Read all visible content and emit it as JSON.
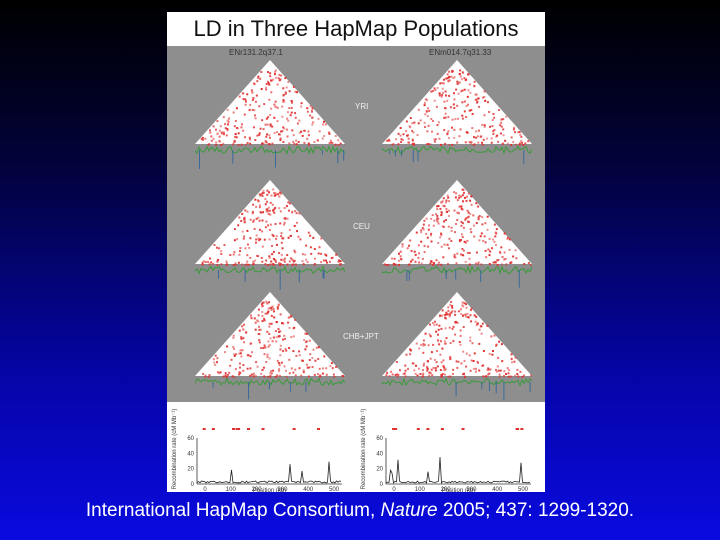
{
  "slide": {
    "figure_title": "LD in Three HapMap Populations",
    "left_region_label": "ENr131.2q37.1",
    "right_region_label": "ENm014.7q31.33",
    "populations": [
      "YRI",
      "CEU",
      "CHB+JPT"
    ],
    "recombination_panel": {
      "y_axis_label": "Recombination rate (cM Mb⁻¹)",
      "y_ticks": [
        "0",
        "20",
        "40",
        "60"
      ],
      "x_axis_label": "Position (kb)",
      "x_ticks": [
        "0",
        "100",
        "200",
        "300",
        "400",
        "500"
      ]
    },
    "citation": {
      "prefix": "International HapMap Consortium, ",
      "journal": "Nature",
      "details": " 2005; 437: 1299-1320."
    }
  },
  "colors": {
    "background_top": "#000000",
    "background_bottom": "#0a0ae0",
    "ld_red": "#e03030",
    "panel_gray": "#8e8e8e"
  }
}
